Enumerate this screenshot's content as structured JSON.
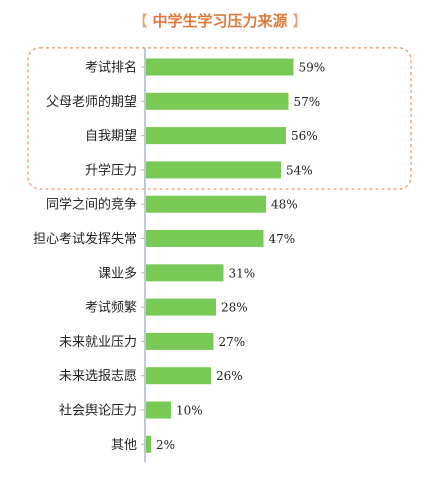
{
  "colors": {
    "bar": "#78c956",
    "axis": "#aab8cc",
    "highlight_border": "#e8926a",
    "title": "#e07a3c"
  },
  "chart_data": {
    "type": "bar",
    "orientation": "horizontal",
    "title": "中学生学习压力来源",
    "categories": [
      "考试排名",
      "父母老师的期望",
      "自我期望",
      "升学压力",
      "同学之间的竞争",
      "担心考试发挥失常",
      "课业多",
      "考试频繁",
      "未来就业压力",
      "未来选报志愿",
      "社会舆论压力",
      "其他"
    ],
    "values": [
      59,
      57,
      56,
      54,
      48,
      47,
      31,
      28,
      27,
      26,
      10,
      2
    ],
    "value_labels": [
      "59%",
      "57%",
      "56%",
      "54%",
      "48%",
      "47%",
      "31%",
      "28%",
      "27%",
      "26%",
      "10%",
      "2%"
    ],
    "xlim": [
      0,
      100
    ],
    "highlighted_categories": [
      "考试排名",
      "父母老师的期望",
      "自我期望",
      "升学压力"
    ],
    "grid": false,
    "legend": "none"
  }
}
